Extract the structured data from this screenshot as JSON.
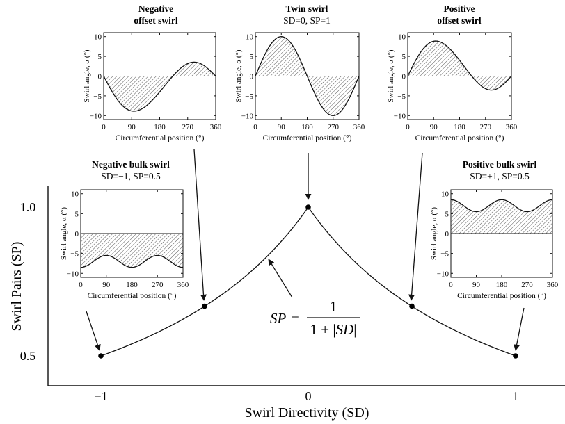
{
  "main": {
    "xlabel": "Swirl Directivity (SD)",
    "ylabel": "Swirl Pairs (SP)",
    "xticks": [
      "−1",
      "0",
      "1"
    ],
    "yticks": [
      "1.0",
      "0.5"
    ],
    "formula": {
      "lhs": "SP",
      "eq": "=",
      "numerator": "1",
      "denominator_prefix": "1 + |",
      "denominator_var": "SD",
      "denominator_suffix": "|"
    }
  },
  "chart_data": {
    "type": "line",
    "x": [
      -1,
      -0.5,
      0,
      0.5,
      1
    ],
    "y": [
      0.5,
      0.667,
      1.0,
      0.667,
      0.5
    ],
    "xlabel": "Swirl Directivity (SD)",
    "ylabel": "Swirl Pairs (SP)"
  },
  "insets": [
    {
      "id": "neg-offset",
      "title": "Negative",
      "title2": "offset swirl",
      "subtitle": "",
      "ylabel": "Swirl angle, α (°)",
      "xlabel": "Circumferential position (°)",
      "xticks": [
        "0",
        "90",
        "180",
        "270",
        "360"
      ],
      "yticks": [
        "10",
        "5",
        "0",
        "−5",
        "−10"
      ],
      "type": "neg_offset"
    },
    {
      "id": "twin",
      "title": "Twin swirl",
      "title2": "",
      "subtitle": "SD=0, SP=1",
      "ylabel": "Swirl angle, α (°)",
      "xlabel": "Circumferential position (°)",
      "xticks": [
        "0",
        "90",
        "180",
        "270",
        "360"
      ],
      "yticks": [
        "10",
        "5",
        "0",
        "−5",
        "−10"
      ],
      "type": "twin"
    },
    {
      "id": "pos-offset",
      "title": "Positive",
      "title2": "offset swirl",
      "subtitle": "",
      "ylabel": "Swirl angle, α (°)",
      "xlabel": "Circumferential position (°)",
      "xticks": [
        "0",
        "90",
        "180",
        "270",
        "360"
      ],
      "yticks": [
        "10",
        "5",
        "0",
        "−5",
        "−10"
      ],
      "type": "pos_offset"
    },
    {
      "id": "neg-bulk",
      "title": "Negative bulk swirl",
      "title2": "",
      "subtitle": "SD=−1, SP=0.5",
      "ylabel": "Swirl angle, α (°)",
      "xlabel": "Circumferential position (°)",
      "xticks": [
        "0",
        "90",
        "180",
        "270",
        "360"
      ],
      "yticks": [
        "10",
        "5",
        "0",
        "−5",
        "−10"
      ],
      "type": "neg_bulk"
    },
    {
      "id": "pos-bulk",
      "title": "Positive bulk swirl",
      "title2": "",
      "subtitle": "SD=+1, SP=0.5",
      "ylabel": "Swirl angle, α (°)",
      "xlabel": "Circumferential position (°)",
      "xticks": [
        "0",
        "90",
        "180",
        "270",
        "360"
      ],
      "yticks": [
        "10",
        "5",
        "0",
        "−5",
        "−10"
      ],
      "type": "pos_bulk"
    }
  ]
}
